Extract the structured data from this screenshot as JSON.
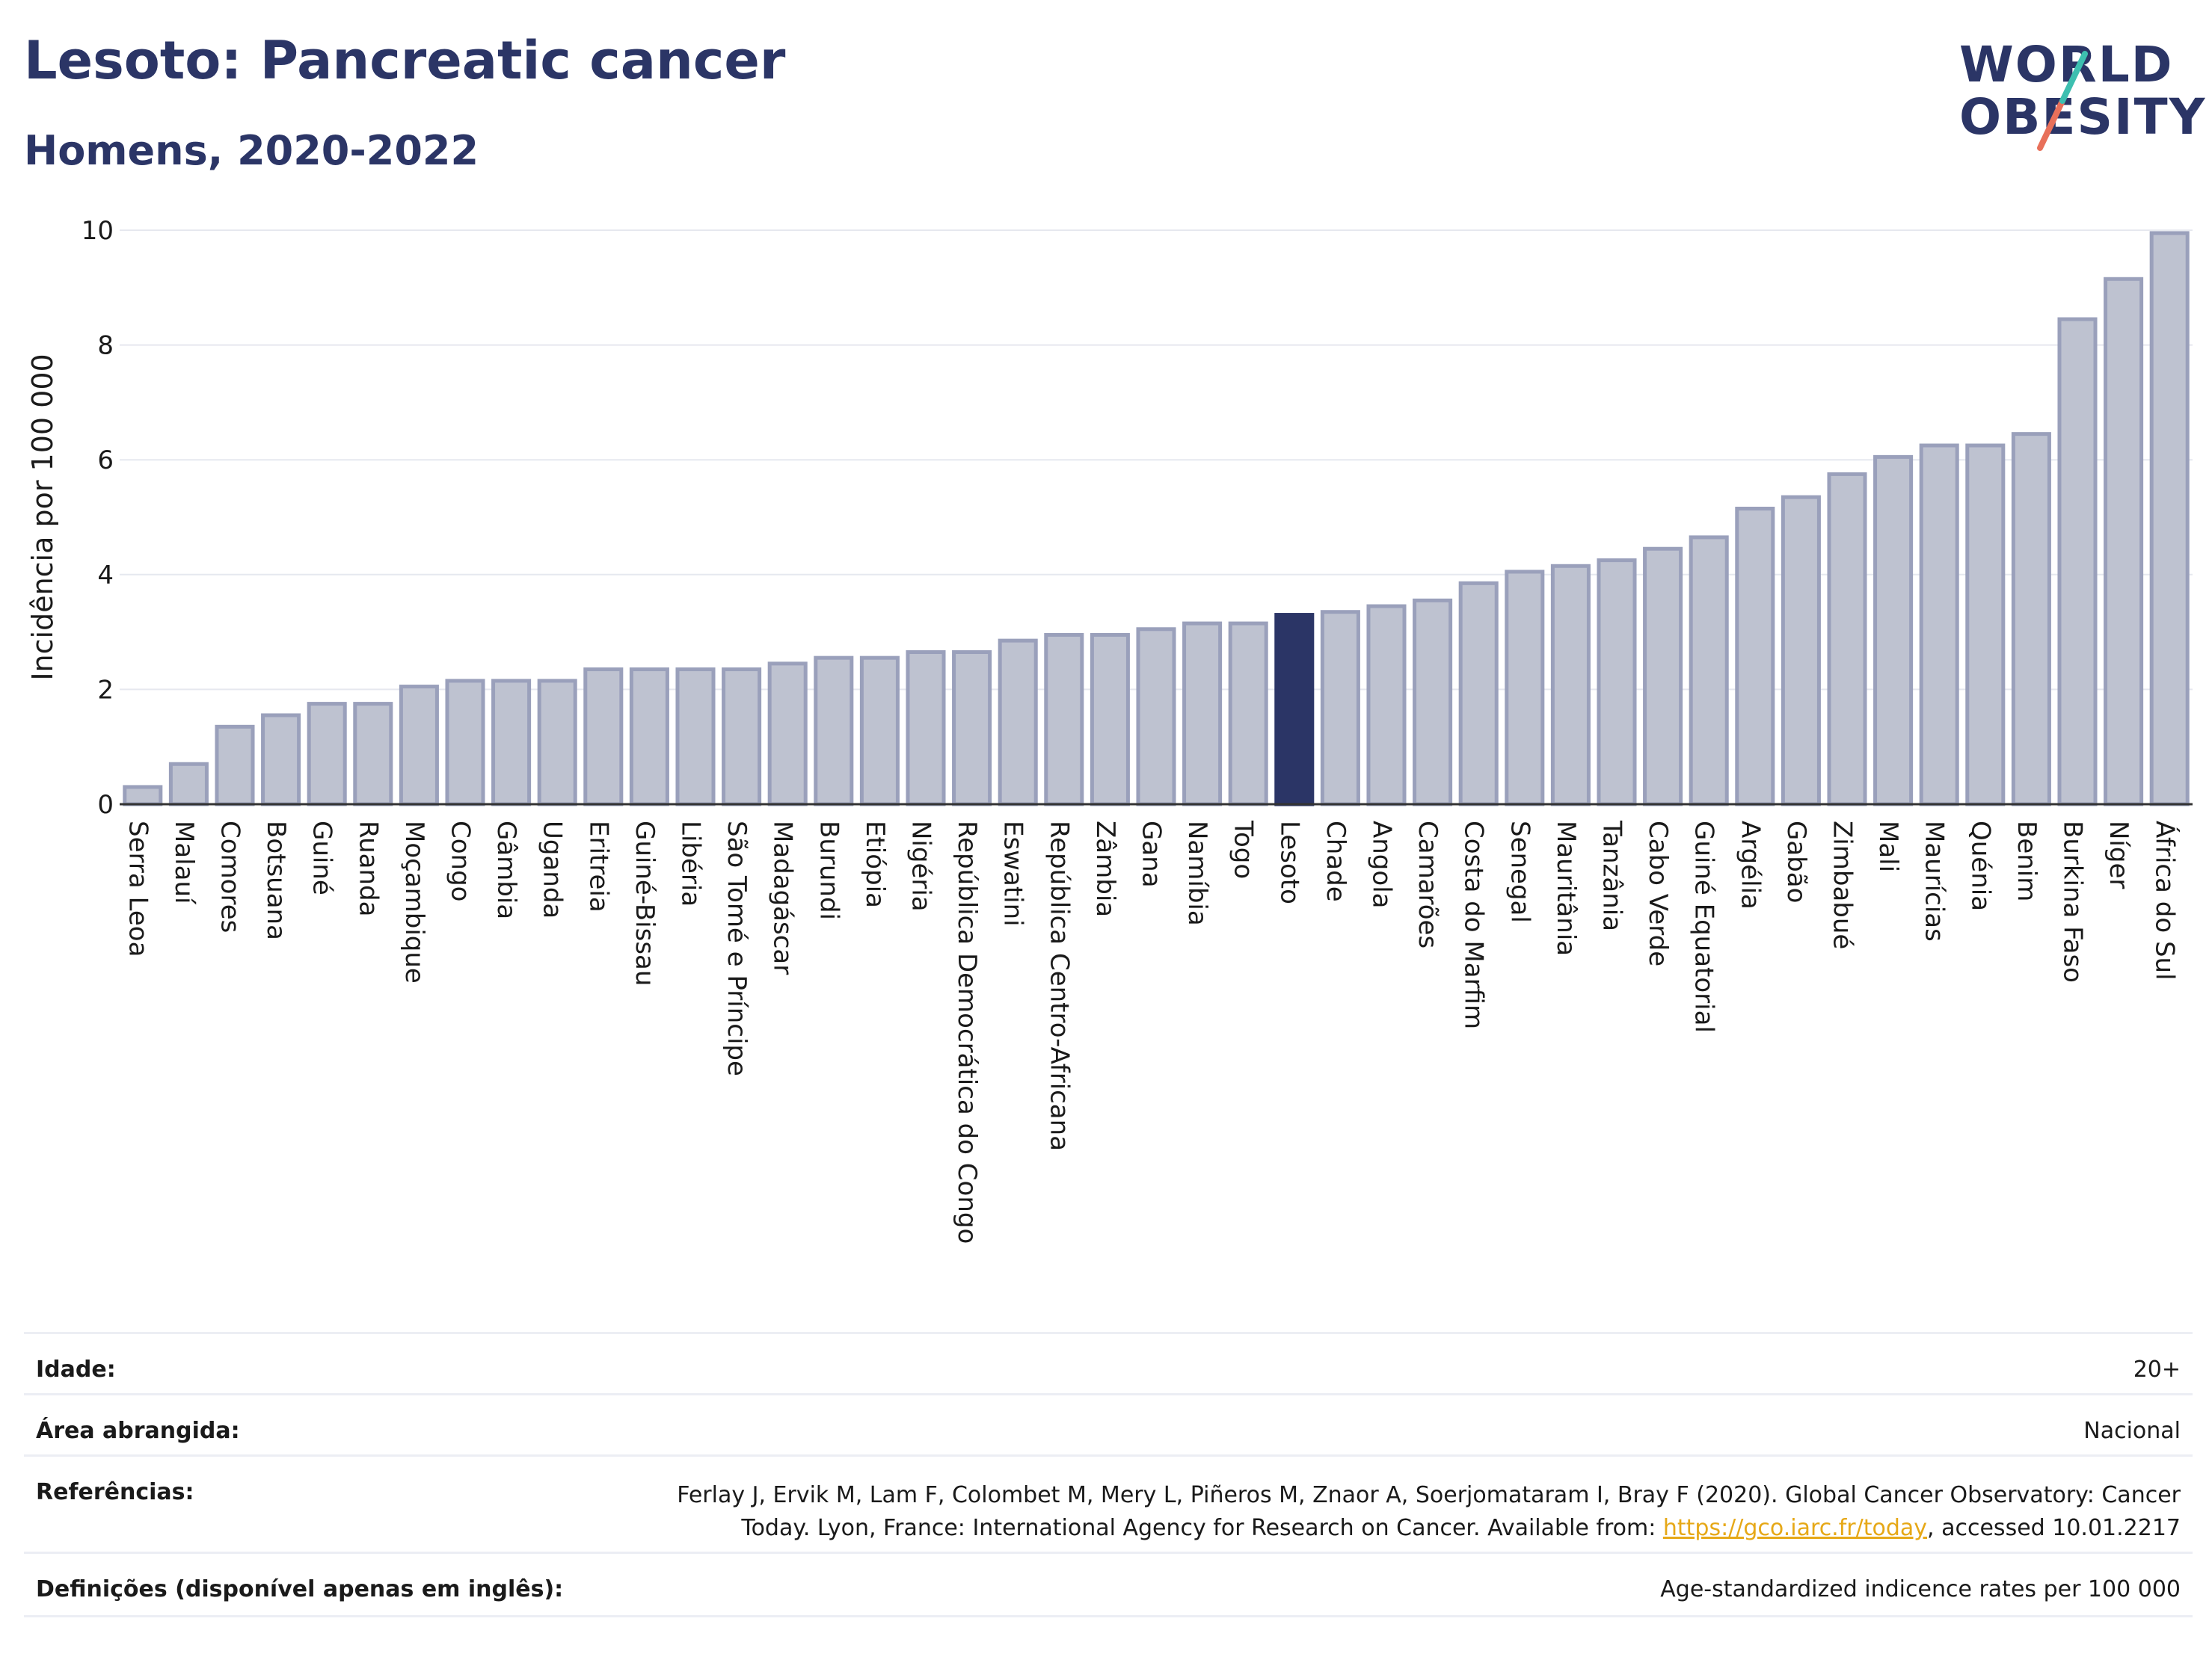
{
  "header": {
    "title": "Lesoto: Pancreatic cancer",
    "subtitle": "Homens, 2020-2022"
  },
  "logo": {
    "line1": "WORLD",
    "line2": "OBESITY",
    "colors": {
      "navy": "#2b3566",
      "teal": "#3dbfb0",
      "coral": "#e8705a"
    }
  },
  "chart_data": {
    "type": "bar",
    "ylabel": "Incidência por 100 000",
    "ylim": [
      0,
      10
    ],
    "yticks": [
      0,
      2,
      4,
      6,
      8,
      10
    ],
    "grid": true,
    "highlight": "Lesoto",
    "colors": {
      "bar": "#bec2d0",
      "bar_edge": "#9aa0bb",
      "highlight": "#2b3566"
    },
    "categories": [
      "Serra Leoa",
      "Malauí",
      "Comores",
      "Botsuana",
      "Guiné",
      "Ruanda",
      "Moçambique",
      "Congo",
      "Gâmbia",
      "Uganda",
      "Eritreia",
      "Guiné-Bissau",
      "Libéria",
      "São Tomé e Príncipe",
      "Madagáscar",
      "Burundi",
      "Etiópia",
      "Nigéria",
      "República Democrática do Congo",
      "Eswatini",
      "República Centro-Africana",
      "Zâmbia",
      "Gana",
      "Namíbia",
      "Togo",
      "Lesoto",
      "Chade",
      "Angola",
      "Camarões",
      "Costa do Marfim",
      "Senegal",
      "Mauritânia",
      "Tanzânia",
      "Cabo Verde",
      "Guiné Equatorial",
      "Argélia",
      "Gabão",
      "Zimbabué",
      "Mali",
      "Maurícias",
      "Quénia",
      "Benim",
      "Burkina Faso",
      "Níger",
      "África do Sul"
    ],
    "values": [
      0.3,
      0.7,
      1.35,
      1.55,
      1.75,
      1.75,
      2.05,
      2.15,
      2.15,
      2.15,
      2.35,
      2.35,
      2.35,
      2.35,
      2.45,
      2.55,
      2.55,
      2.65,
      2.65,
      2.85,
      2.95,
      2.95,
      3.05,
      3.15,
      3.15,
      3.3,
      3.35,
      3.45,
      3.55,
      3.85,
      4.05,
      4.15,
      4.25,
      4.45,
      4.65,
      5.15,
      5.35,
      5.75,
      6.05,
      6.25,
      6.25,
      6.45,
      8.45,
      9.15,
      9.95
    ]
  },
  "meta": {
    "age_label": "Idade:",
    "age_value": "20+",
    "area_label": "Área abrangida:",
    "area_value": "Nacional",
    "ref_label": "Referências:",
    "ref_line1": "Ferlay J, Ervik M, Lam F, Colombet M, Mery L, Piñeros M, Znaor A, Soerjomataram I, Bray F (2020). Global Cancer Observatory: Cancer",
    "ref_line2_pre": "Today. Lyon, France: International Agency for Research on Cancer. Available from: ",
    "ref_link": "https://gco.iarc.fr/today",
    "ref_line2_post": ", accessed 10.01.2217",
    "def_label": "Definições (disponível apenas em inglês):",
    "def_value": "Age-standardized indicence rates per 100 000"
  }
}
